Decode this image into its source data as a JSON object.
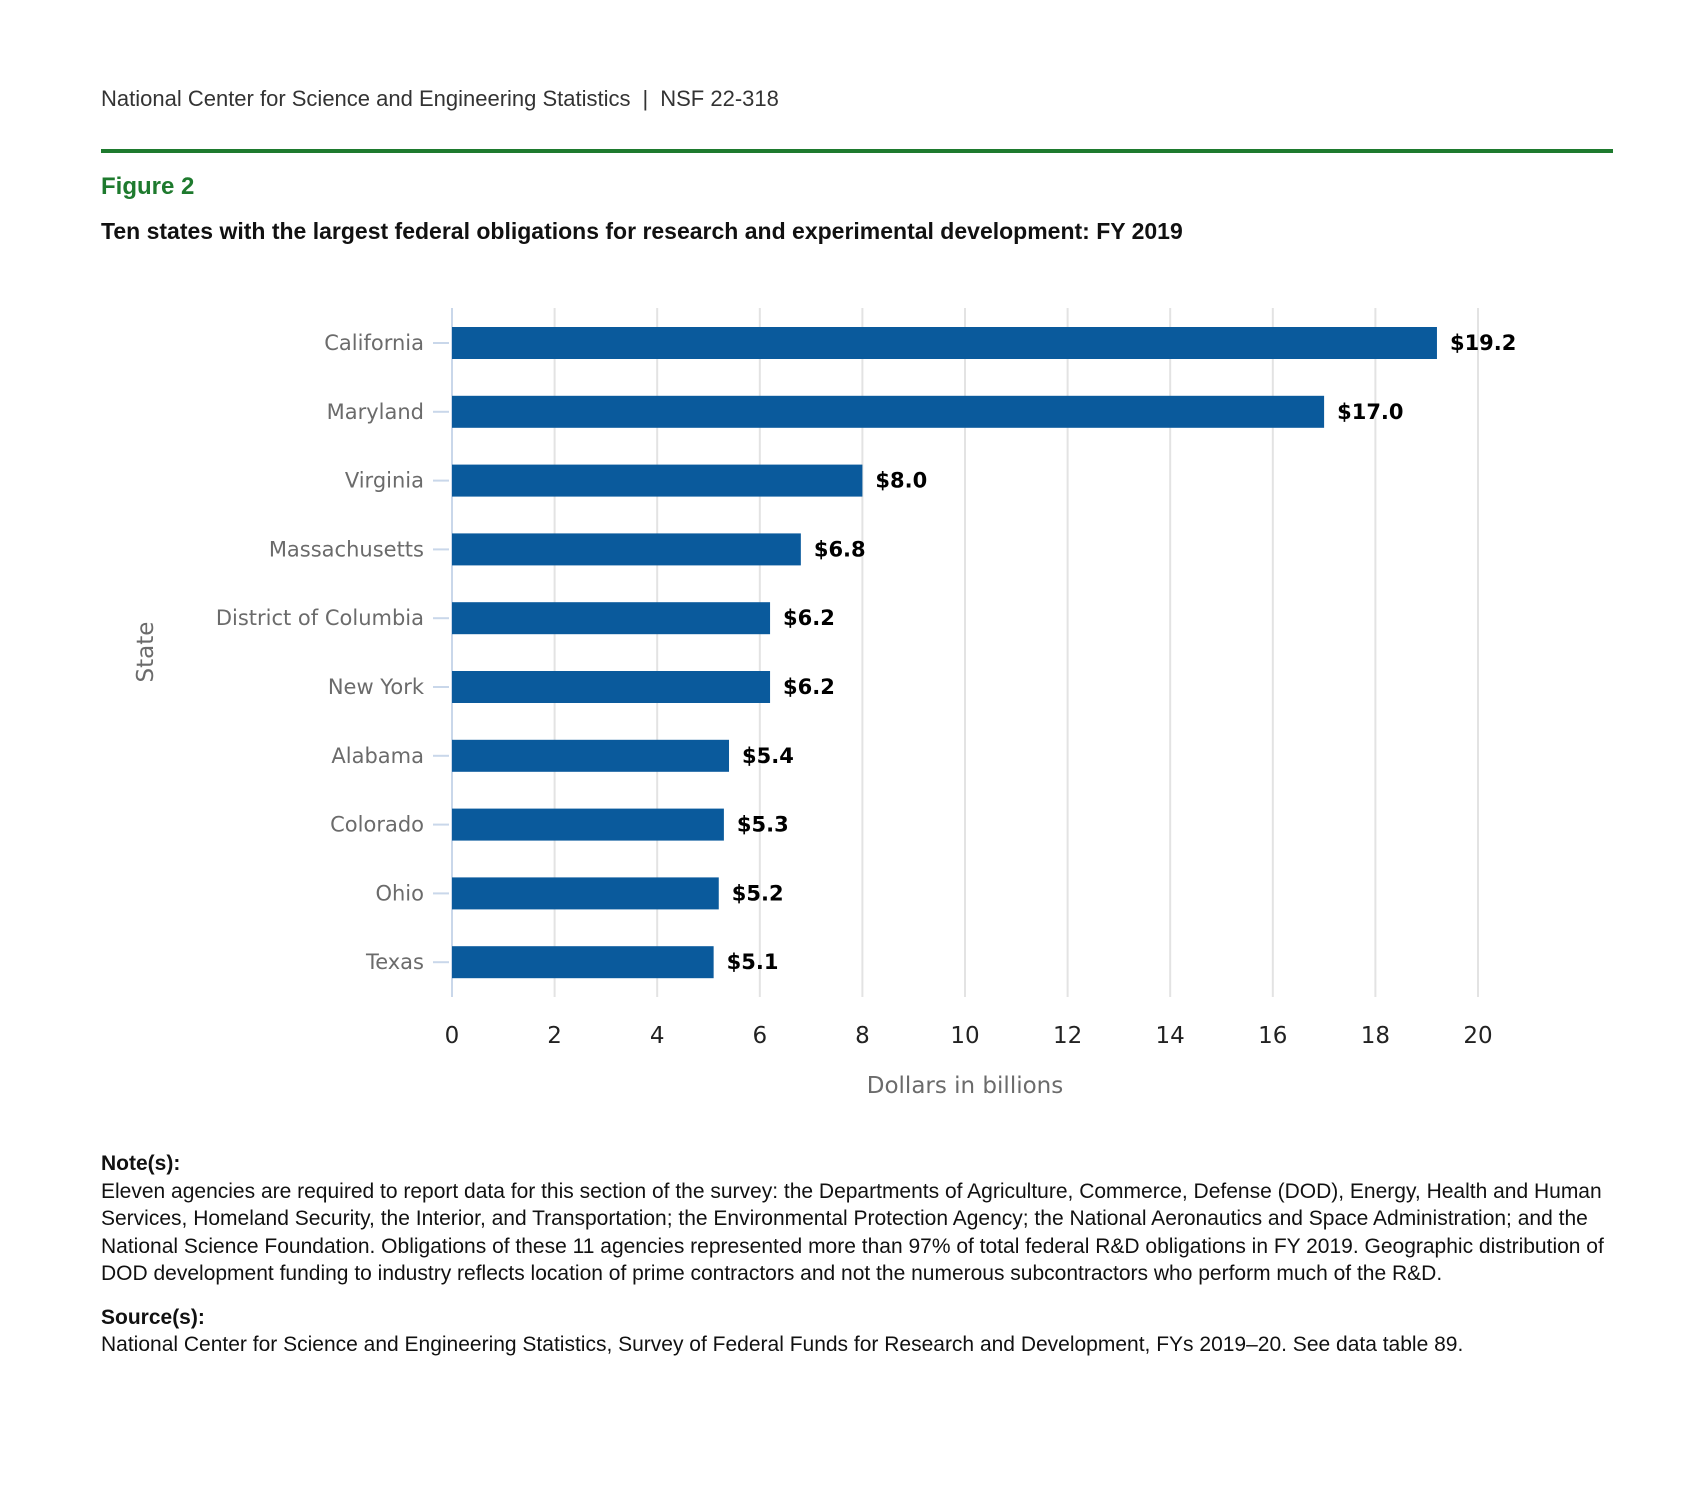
{
  "header": {
    "org": "National Center for Science and Engineering Statistics",
    "separator": "|",
    "report_id": "NSF 22-318"
  },
  "figure": {
    "label": "Figure 2",
    "title": "Ten states with the largest federal obligations for research and experimental development: FY 2019"
  },
  "colors": {
    "accent_green": "#1e7a2e",
    "bar_blue": "#0a5a9c",
    "grid": "#e3e3e3",
    "axis_text": "#6b6b6b"
  },
  "chart_data": {
    "type": "bar",
    "orientation": "horizontal",
    "categories": [
      "California",
      "Maryland",
      "Virginia",
      "Massachusetts",
      "District of Columbia",
      "New York",
      "Alabama",
      "Colorado",
      "Ohio",
      "Texas"
    ],
    "values": [
      19.2,
      17.0,
      8.0,
      6.8,
      6.2,
      6.2,
      5.4,
      5.3,
      5.2,
      5.1
    ],
    "data_labels": [
      "$19.2",
      "$17.0",
      "$8.0",
      "$6.8",
      "$6.2",
      "$6.2",
      "$5.4",
      "$5.3",
      "$5.2",
      "$5.1"
    ],
    "xlabel": "Dollars in billions",
    "ylabel": "State",
    "xlim": [
      0,
      20
    ],
    "xticks": [
      0,
      2,
      4,
      6,
      8,
      10,
      12,
      14,
      16,
      18,
      20
    ],
    "grid": true,
    "legend": "none"
  },
  "notes": {
    "heading": "Note(s):",
    "text": "Eleven agencies are required to report data for this section of the survey: the Departments of Agriculture, Commerce, Defense (DOD), Energy, Health and Human Services, Homeland Security, the Interior, and Transportation; the Environmental Protection Agency; the National Aeronautics and Space Administration; and the National Science Foundation. Obligations of these 11 agencies represented more than 97% of total federal R&D obligations in FY 2019. Geographic distribution of DOD development funding to industry reflects location of prime contractors and not the numerous subcontractors who perform much of the R&D."
  },
  "source": {
    "heading": "Source(s):",
    "text": "National Center for Science and Engineering Statistics, Survey of Federal Funds for Research and Development, FYs 2019–20. See data table 89."
  }
}
